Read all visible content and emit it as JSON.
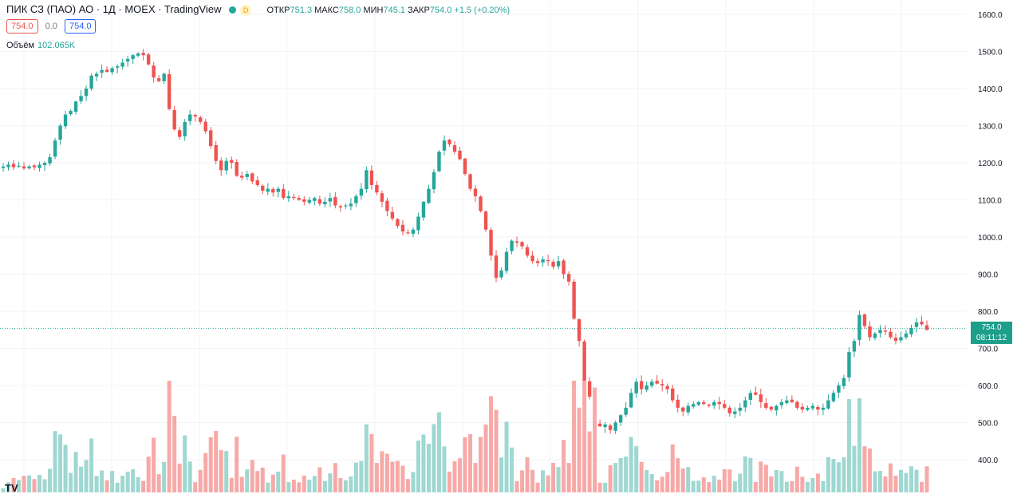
{
  "legend": {
    "instrument": "ПИК СЗ (ПАО) АО · 1Д · MOEX · TradingView",
    "d_badge": "D",
    "open_label": "ОТКР",
    "open_value": "751.3",
    "high_label": "МАКС",
    "high_value": "758.0",
    "low_label": "МИН",
    "low_value": "745.1",
    "close_label": "ЗАКР",
    "close_value": "754.0",
    "change": "+1.5 (+0.20%)",
    "bid": "754.0",
    "spread": "0.0",
    "ask": "754.0",
    "volume_label": "Объём",
    "volume_value": "102.065K"
  },
  "price_badge": {
    "price": "754.0",
    "countdown": "08:11:12"
  },
  "colors": {
    "up": "#26a69a",
    "down": "#ef5350",
    "up_vol": "#9fd7d1",
    "down_vol": "#f7a9a7",
    "grid": "#f0f3fa",
    "axis_text": "#131722"
  },
  "chart_data": {
    "type": "candlestick",
    "y_ticks": [
      "1600.0",
      "1500.0",
      "1400.0",
      "1300.0",
      "1200.0",
      "1100.0",
      "1000.0",
      "900.0",
      "800.0",
      "700.0",
      "600.0",
      "500.0",
      "400.0"
    ],
    "ylim": [
      370,
      1610
    ],
    "last_price": 754.0,
    "grid": true,
    "volume_series_name": "Объём",
    "closes": [
      1190,
      1195,
      1188,
      1192,
      1185,
      1190,
      1188,
      1195,
      1200,
      1215,
      1260,
      1300,
      1330,
      1340,
      1365,
      1380,
      1400,
      1435,
      1440,
      1450,
      1445,
      1455,
      1460,
      1470,
      1480,
      1490,
      1495,
      1490,
      1465,
      1430,
      1420,
      1440,
      1345,
      1290,
      1270,
      1310,
      1330,
      1325,
      1310,
      1285,
      1245,
      1205,
      1180,
      1205,
      1200,
      1165,
      1160,
      1170,
      1150,
      1140,
      1125,
      1130,
      1120,
      1130,
      1105,
      1110,
      1105,
      1100,
      1095,
      1100,
      1105,
      1090,
      1095,
      1105,
      1085,
      1080,
      1085,
      1090,
      1110,
      1130,
      1180,
      1140,
      1120,
      1095,
      1070,
      1050,
      1030,
      1015,
      1010,
      1020,
      1055,
      1095,
      1130,
      1175,
      1230,
      1260,
      1250,
      1230,
      1210,
      1170,
      1130,
      1110,
      1070,
      1020,
      950,
      890,
      910,
      960,
      990,
      985,
      975,
      950,
      935,
      930,
      940,
      935,
      920,
      935,
      900,
      880,
      780,
      720,
      610,
      570,
      495,
      490,
      495,
      480,
      500,
      520,
      540,
      580,
      610,
      590,
      600,
      610,
      605,
      600,
      590,
      560,
      540,
      530,
      545,
      550,
      555,
      550,
      545,
      555,
      550,
      540,
      525,
      530,
      540,
      560,
      580,
      575,
      555,
      540,
      535,
      545,
      555,
      560,
      555,
      540,
      535,
      540,
      545,
      535,
      540,
      560,
      580,
      600,
      620,
      690,
      720,
      790,
      760,
      730,
      740,
      750,
      745,
      730,
      720,
      730,
      740,
      755,
      770,
      765,
      750
    ]
  }
}
